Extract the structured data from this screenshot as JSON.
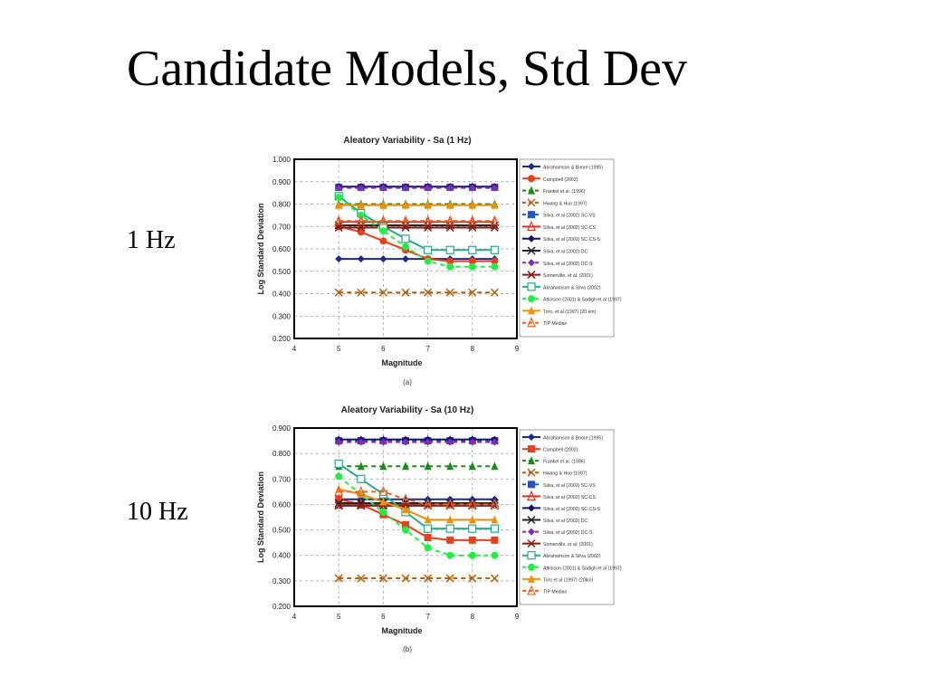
{
  "slide": {
    "title": "Candidate Models, Std Dev",
    "label_top": "1 Hz",
    "label_bottom": "10 Hz"
  },
  "chart_data": [
    {
      "type": "line",
      "title": "Aleatory Variability - Sa (1 Hz)",
      "xlabel": "Magnitude",
      "ylabel": "Log Standard Deviation",
      "caption": "(a)",
      "xlim": [
        4,
        9
      ],
      "ylim": [
        0.2,
        1.0
      ],
      "xticks": [
        "4",
        "5",
        "6",
        "7",
        "8",
        "9"
      ],
      "yticks": [
        "0.200",
        "0.300",
        "0.400",
        "0.500",
        "0.600",
        "0.700",
        "0.800",
        "0.900",
        "1.000"
      ],
      "legend_position": "right",
      "x": [
        5,
        5.5,
        6,
        6.5,
        7,
        7.5,
        8,
        8.5
      ],
      "series": [
        {
          "name": "Abrahamson & Boore (1995)",
          "color": "#1a2a8c",
          "dash": false,
          "marker": "diamond",
          "values": [
            0.555,
            0.555,
            0.555,
            0.555,
            0.555,
            0.555,
            0.555,
            0.555
          ]
        },
        {
          "name": "Campbell (2002)",
          "color": "#e8401c",
          "dash": false,
          "marker": "circle",
          "values": [
            0.7,
            0.675,
            0.635,
            0.595,
            0.555,
            0.545,
            0.545,
            0.545
          ]
        },
        {
          "name": "Frankel et al. (1996)",
          "color": "#1e8a1e",
          "dash": true,
          "marker": "triangle",
          "values": [
            0.8,
            0.8,
            0.8,
            0.8,
            0.8,
            0.8,
            0.8,
            0.8
          ]
        },
        {
          "name": "Hwang & Huo (1997)",
          "color": "#b8600a",
          "dash": true,
          "marker": "x",
          "values": [
            0.405,
            0.405,
            0.405,
            0.405,
            0.405,
            0.405,
            0.405,
            0.405
          ]
        },
        {
          "name": "Silva, et al (2002) SC-VS",
          "color": "#2255cc",
          "dash": true,
          "marker": "square",
          "values": [
            0.875,
            0.875,
            0.875,
            0.875,
            0.875,
            0.875,
            0.875,
            0.875
          ]
        },
        {
          "name": "Silva, et al (2002) SC-CS",
          "color": "#e83020",
          "dash": false,
          "marker": "triangle-open",
          "values": [
            0.72,
            0.72,
            0.72,
            0.72,
            0.72,
            0.72,
            0.72,
            0.72
          ]
        },
        {
          "name": "Silva, et al (2002) SC-CS-S",
          "color": "#101070",
          "dash": false,
          "marker": "diamond",
          "values": [
            0.878,
            0.878,
            0.878,
            0.878,
            0.878,
            0.878,
            0.878,
            0.878
          ]
        },
        {
          "name": "Silva, et al (2002) DC",
          "color": "#222222",
          "dash": false,
          "marker": "x",
          "values": [
            0.705,
            0.705,
            0.705,
            0.705,
            0.705,
            0.705,
            0.705,
            0.705
          ]
        },
        {
          "name": "Silva, et al (2002) DC-S",
          "color": "#8a2aa8",
          "dash": true,
          "marker": "diamond",
          "values": [
            0.872,
            0.872,
            0.872,
            0.872,
            0.872,
            0.872,
            0.872,
            0.872
          ]
        },
        {
          "name": "Somerville, et al. (2001)",
          "color": "#8a1a10",
          "dash": false,
          "marker": "x",
          "values": [
            0.695,
            0.695,
            0.695,
            0.695,
            0.695,
            0.695,
            0.695,
            0.695
          ]
        },
        {
          "name": "Abrahamson & Silva (2002)",
          "color": "#2aa88a",
          "dash": false,
          "marker": "square-open",
          "values": [
            0.835,
            0.76,
            0.7,
            0.645,
            0.595,
            0.595,
            0.595,
            0.595
          ]
        },
        {
          "name": "Atkinson (2001) & Sadigh et al (1997)",
          "color": "#22ee44",
          "dash": true,
          "marker": "circle",
          "values": [
            0.83,
            0.75,
            0.68,
            0.61,
            0.545,
            0.52,
            0.52,
            0.52
          ]
        },
        {
          "name": "Toro, et al (1997) (20 km)",
          "color": "#f0900a",
          "dash": false,
          "marker": "triangle",
          "values": [
            0.795,
            0.795,
            0.795,
            0.795,
            0.795,
            0.795,
            0.795,
            0.795
          ]
        },
        {
          "name": "TIP Median",
          "color": "#f06020",
          "dash": true,
          "marker": "triangle-open",
          "values": [
            0.725,
            0.725,
            0.725,
            0.725,
            0.725,
            0.725,
            0.725,
            0.725
          ]
        }
      ]
    },
    {
      "type": "line",
      "title": "Aleatory Variability - Sa (10 Hz)",
      "xlabel": "Magnitude",
      "ylabel": "Log Standard Deviation",
      "caption": "(b)",
      "xlim": [
        4,
        9
      ],
      "ylim": [
        0.2,
        0.9
      ],
      "xticks": [
        "4",
        "5",
        "6",
        "7",
        "8",
        "9"
      ],
      "yticks": [
        "0.200",
        "0.300",
        "0.400",
        "0.500",
        "0.600",
        "0.700",
        "0.800",
        "0.900"
      ],
      "legend_position": "right",
      "x": [
        5,
        5.5,
        6,
        6.5,
        7,
        7.5,
        8,
        8.5
      ],
      "series": [
        {
          "name": "Abrahamson & Boore (1995)",
          "color": "#1a2a8c",
          "dash": false,
          "marker": "diamond",
          "values": [
            0.62,
            0.62,
            0.62,
            0.62,
            0.62,
            0.62,
            0.62,
            0.62
          ]
        },
        {
          "name": "Campbell (2002)",
          "color": "#e8401c",
          "dash": false,
          "marker": "square",
          "values": [
            0.62,
            0.6,
            0.56,
            0.52,
            0.47,
            0.46,
            0.46,
            0.46
          ]
        },
        {
          "name": "Frankel et al. (1996)",
          "color": "#1e8a1e",
          "dash": true,
          "marker": "triangle",
          "values": [
            0.75,
            0.75,
            0.75,
            0.75,
            0.75,
            0.75,
            0.75,
            0.75
          ]
        },
        {
          "name": "Hwang & Huo (1997)",
          "color": "#b8600a",
          "dash": true,
          "marker": "x",
          "values": [
            0.31,
            0.31,
            0.31,
            0.31,
            0.31,
            0.31,
            0.31,
            0.31
          ]
        },
        {
          "name": "Silva, et al (2002) SC-VS",
          "color": "#2255cc",
          "dash": true,
          "marker": "square",
          "values": [
            0.85,
            0.85,
            0.85,
            0.85,
            0.85,
            0.85,
            0.85,
            0.85
          ]
        },
        {
          "name": "Silva, et al (2002) SC-CS",
          "color": "#e83020",
          "dash": false,
          "marker": "triangle-open",
          "values": [
            0.6,
            0.6,
            0.6,
            0.6,
            0.6,
            0.6,
            0.6,
            0.6
          ]
        },
        {
          "name": "Silva, et al (2002) SC-CS-S",
          "color": "#101070",
          "dash": false,
          "marker": "diamond",
          "values": [
            0.855,
            0.855,
            0.855,
            0.855,
            0.855,
            0.855,
            0.855,
            0.855
          ]
        },
        {
          "name": "Silva, et al (2002) DC",
          "color": "#222222",
          "dash": false,
          "marker": "x",
          "values": [
            0.605,
            0.605,
            0.605,
            0.605,
            0.605,
            0.605,
            0.605,
            0.605
          ]
        },
        {
          "name": "Silva, et al (2002) DC-S",
          "color": "#8a2aa8",
          "dash": true,
          "marker": "diamond",
          "values": [
            0.845,
            0.845,
            0.845,
            0.845,
            0.845,
            0.845,
            0.845,
            0.845
          ]
        },
        {
          "name": "Somerville, et al. (2001)",
          "color": "#8a1a10",
          "dash": false,
          "marker": "x",
          "values": [
            0.595,
            0.595,
            0.595,
            0.595,
            0.595,
            0.595,
            0.595,
            0.595
          ]
        },
        {
          "name": "Abrahamson & Silva (2002)",
          "color": "#2aa88a",
          "dash": false,
          "marker": "square-open",
          "values": [
            0.76,
            0.7,
            0.64,
            0.57,
            0.505,
            0.505,
            0.505,
            0.505
          ]
        },
        {
          "name": "Atkinson (2001) & Sadigh et al (1997)",
          "color": "#22ee44",
          "dash": true,
          "marker": "circle",
          "values": [
            0.71,
            0.64,
            0.57,
            0.5,
            0.43,
            0.4,
            0.4,
            0.4
          ]
        },
        {
          "name": "Toro et al (1997) (20km)",
          "color": "#f0900a",
          "dash": false,
          "marker": "triangle",
          "values": [
            0.66,
            0.64,
            0.61,
            0.58,
            0.54,
            0.54,
            0.54,
            0.54
          ]
        },
        {
          "name": "TIP Median",
          "color": "#f06020",
          "dash": true,
          "marker": "triangle-open",
          "values": [
            0.65,
            0.65,
            0.65,
            0.62,
            0.6,
            0.6,
            0.6,
            0.6
          ]
        }
      ]
    }
  ]
}
